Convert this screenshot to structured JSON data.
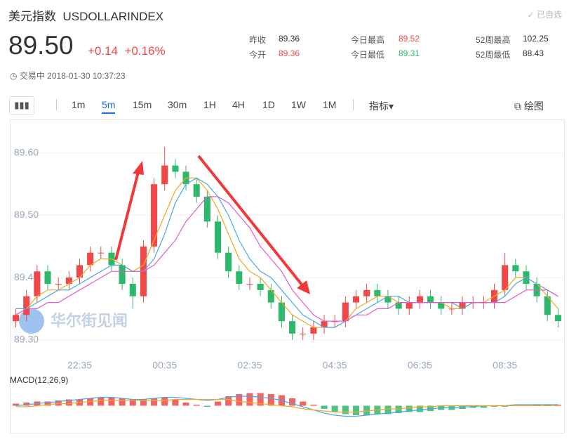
{
  "header": {
    "title": "美元指数",
    "code": "USDOLLARINDEX",
    "watch": "已自选",
    "price": "89.50",
    "change": "+0.14",
    "change_pct": "+0.16%",
    "status": "交易中 2018-01-30 10:37:23",
    "stats": [
      {
        "label": "昨收",
        "value": "89.36"
      },
      {
        "label": "今开",
        "value": "89.36"
      },
      {
        "label": "今日最高",
        "value": "89.52"
      },
      {
        "label": "今日最低",
        "value": "89.31"
      },
      {
        "label": "52周最高",
        "value": "102.25"
      },
      {
        "label": "52周最低",
        "value": "88.43"
      }
    ]
  },
  "toolbar": {
    "tabs": [
      "1m",
      "5m",
      "15m",
      "30m",
      "1H",
      "4H",
      "1D",
      "1W",
      "1M"
    ],
    "active_tab": 1,
    "indicator": "指标",
    "draw": "绘图"
  },
  "watermark": "华尔街见闻",
  "chart_data": {
    "type": "candlestick",
    "up_color": "#f04848",
    "down_color": "#2eb86b",
    "categories": [
      null,
      null,
      null,
      null,
      null,
      null,
      "22:35",
      null,
      null,
      null,
      null,
      null,
      null,
      null,
      "00:35",
      null,
      null,
      null,
      null,
      null,
      null,
      null,
      "02:35",
      null,
      null,
      null,
      null,
      null,
      null,
      null,
      "04:35",
      null,
      null,
      null,
      null,
      null,
      null,
      null,
      "06:35",
      null,
      null,
      null,
      null,
      null,
      null,
      null,
      "08:35",
      null,
      null,
      null,
      null,
      null
    ],
    "open": [
      89.33,
      89.34,
      89.37,
      89.41,
      89.39,
      89.39,
      89.4,
      89.42,
      89.44,
      89.44,
      89.42,
      89.39,
      89.37,
      89.45,
      89.55,
      89.58,
      89.57,
      89.55,
      89.53,
      89.49,
      89.44,
      89.41,
      89.39,
      89.39,
      89.38,
      89.36,
      89.33,
      89.31,
      89.31,
      89.32,
      89.33,
      89.33,
      89.36,
      89.37,
      89.38,
      89.37,
      89.36,
      89.35,
      89.36,
      89.37,
      89.36,
      89.35,
      89.35,
      89.36,
      89.36,
      89.36,
      89.38,
      89.42,
      89.41,
      89.39,
      89.37,
      89.34
    ],
    "high": [
      89.35,
      89.38,
      89.42,
      89.42,
      89.4,
      89.41,
      89.43,
      89.45,
      89.45,
      89.45,
      89.43,
      89.4,
      89.46,
      89.56,
      89.61,
      89.59,
      89.58,
      89.56,
      89.54,
      89.5,
      89.45,
      89.42,
      89.4,
      89.4,
      89.39,
      89.37,
      89.34,
      89.32,
      89.33,
      89.34,
      89.34,
      89.37,
      89.38,
      89.39,
      89.39,
      89.38,
      89.37,
      89.37,
      89.38,
      89.38,
      89.37,
      89.36,
      89.37,
      89.37,
      89.37,
      89.39,
      89.44,
      89.43,
      89.42,
      89.4,
      89.38,
      89.35
    ],
    "low": [
      89.32,
      89.33,
      89.36,
      89.38,
      89.38,
      89.38,
      89.39,
      89.41,
      89.43,
      89.41,
      89.38,
      89.35,
      89.36,
      89.44,
      89.54,
      89.56,
      89.54,
      89.52,
      89.48,
      89.43,
      89.4,
      89.38,
      89.38,
      89.37,
      89.35,
      89.32,
      89.3,
      89.3,
      89.3,
      89.31,
      89.32,
      89.32,
      89.35,
      89.36,
      89.36,
      89.35,
      89.34,
      89.34,
      89.35,
      89.35,
      89.34,
      89.34,
      89.34,
      89.35,
      89.35,
      89.35,
      89.37,
      89.4,
      89.38,
      89.36,
      89.33,
      89.32
    ],
    "close": [
      89.34,
      89.37,
      89.41,
      89.39,
      89.39,
      89.4,
      89.42,
      89.44,
      89.44,
      89.42,
      89.39,
      89.37,
      89.45,
      89.55,
      89.58,
      89.57,
      89.55,
      89.53,
      89.49,
      89.44,
      89.41,
      89.39,
      89.39,
      89.38,
      89.36,
      89.33,
      89.31,
      89.31,
      89.32,
      89.33,
      89.33,
      89.36,
      89.37,
      89.38,
      89.37,
      89.36,
      89.35,
      89.36,
      89.37,
      89.36,
      89.35,
      89.35,
      89.36,
      89.36,
      89.36,
      89.38,
      89.42,
      89.41,
      89.39,
      89.37,
      89.34,
      89.33
    ],
    "series": [
      {
        "color": "#f5a623",
        "values": [
          89.34,
          89.35,
          89.37,
          89.38,
          89.38,
          89.39,
          89.4,
          89.42,
          89.43,
          89.43,
          89.42,
          89.41,
          89.42,
          89.46,
          89.5,
          89.54,
          89.56,
          89.56,
          89.54,
          89.51,
          89.47,
          89.43,
          89.41,
          89.4,
          89.38,
          89.36,
          89.34,
          89.33,
          89.32,
          89.32,
          89.32,
          89.33,
          89.35,
          89.36,
          89.37,
          89.37,
          89.36,
          89.36,
          89.36,
          89.36,
          89.36,
          89.35,
          89.35,
          89.36,
          89.36,
          89.37,
          89.38,
          89.4,
          89.4,
          89.39,
          89.37,
          89.35
        ]
      },
      {
        "color": "#4aa8e8",
        "values": [
          89.35,
          89.35,
          89.36,
          89.37,
          89.38,
          89.38,
          89.39,
          89.4,
          89.41,
          89.42,
          89.42,
          89.41,
          89.41,
          89.43,
          89.47,
          89.52,
          89.55,
          89.56,
          89.55,
          89.53,
          89.5,
          89.46,
          89.43,
          89.41,
          89.4,
          89.38,
          89.36,
          89.34,
          89.33,
          89.32,
          89.32,
          89.33,
          89.34,
          89.35,
          89.36,
          89.37,
          89.37,
          89.36,
          89.36,
          89.36,
          89.36,
          89.36,
          89.35,
          89.36,
          89.36,
          89.36,
          89.37,
          89.39,
          89.4,
          89.39,
          89.38,
          89.37
        ]
      },
      {
        "color": "#e45bd0",
        "values": [
          89.34,
          89.35,
          89.35,
          89.36,
          89.36,
          89.37,
          89.38,
          89.39,
          89.4,
          89.41,
          89.41,
          89.41,
          89.41,
          89.42,
          89.44,
          89.46,
          89.49,
          89.51,
          89.53,
          89.53,
          89.52,
          89.5,
          89.48,
          89.45,
          89.43,
          89.41,
          89.38,
          89.36,
          89.34,
          89.33,
          89.33,
          89.33,
          89.34,
          89.34,
          89.35,
          89.35,
          89.36,
          89.36,
          89.36,
          89.36,
          89.36,
          89.36,
          89.36,
          89.36,
          89.36,
          89.36,
          89.36,
          89.37,
          89.38,
          89.38,
          89.38,
          89.37
        ]
      }
    ],
    "ylim": [
      89.276,
      89.645
    ],
    "yticks": [
      {
        "value": 89.3,
        "label": "89.30"
      },
      {
        "value": 89.4,
        "label": "89.40"
      },
      {
        "value": 89.5,
        "label": "89.50"
      },
      {
        "value": 89.6,
        "label": "89.60"
      }
    ],
    "macd": {
      "title": "MACD(12,26,9)",
      "ylim": [
        -0.015,
        0.015
      ],
      "histogram": [
        0.002,
        0.003,
        0.004,
        0.004,
        0.005,
        0.006,
        0.006,
        0.007,
        0.008,
        0.008,
        0.007,
        0.006,
        0.006,
        0.007,
        0.008,
        0.006,
        0.003,
        0.001,
        -0.001,
        0.004,
        0.009,
        0.011,
        0.012,
        0.012,
        0.011,
        0.01,
        0.007,
        0.004,
        0.001,
        -0.003,
        -0.006,
        -0.008,
        -0.009,
        -0.009,
        -0.008,
        -0.008,
        -0.007,
        -0.006,
        -0.006,
        -0.005,
        -0.004,
        -0.004,
        -0.003,
        -0.002,
        -0.002,
        -0.001,
        -0.001,
        0.0,
        0.0,
        0.001,
        0.001,
        0.001
      ],
      "series": [
        {
          "color": "#4aa8e8",
          "values": [
            0.0,
            0.001,
            0.002,
            0.003,
            0.004,
            0.005,
            0.006,
            0.007,
            0.008,
            0.008,
            0.007,
            0.006,
            0.006,
            0.007,
            0.008,
            0.008,
            0.007,
            0.006,
            0.005,
            0.006,
            0.008,
            0.009,
            0.009,
            0.008,
            0.007,
            0.005,
            0.002,
            -0.001,
            -0.004,
            -0.007,
            -0.009,
            -0.01,
            -0.01,
            -0.009,
            -0.008,
            -0.007,
            -0.006,
            -0.005,
            -0.004,
            -0.003,
            -0.002,
            -0.002,
            -0.001,
            -0.001,
            0.0,
            0.0,
            0.0,
            0.001,
            0.001,
            0.001,
            0.001,
            0.001
          ]
        },
        {
          "color": "#f5a623",
          "values": [
            -0.001,
            -0.001,
            0.0,
            0.001,
            0.002,
            0.002,
            0.003,
            0.004,
            0.005,
            0.005,
            0.005,
            0.005,
            0.005,
            0.005,
            0.005,
            0.006,
            0.006,
            0.006,
            0.006,
            0.006,
            0.006,
            0.004,
            0.003,
            0.002,
            0.001,
            0.0,
            -0.001,
            -0.003,
            -0.004,
            -0.005,
            -0.006,
            -0.006,
            -0.006,
            -0.005,
            -0.004,
            -0.003,
            -0.003,
            -0.002,
            -0.001,
            -0.001,
            0.0,
            0.0,
            0.0,
            0.0,
            0.0,
            0.0,
            0.0,
            0.0,
            0.0,
            0.0,
            0.0,
            0.0
          ]
        }
      ]
    }
  }
}
